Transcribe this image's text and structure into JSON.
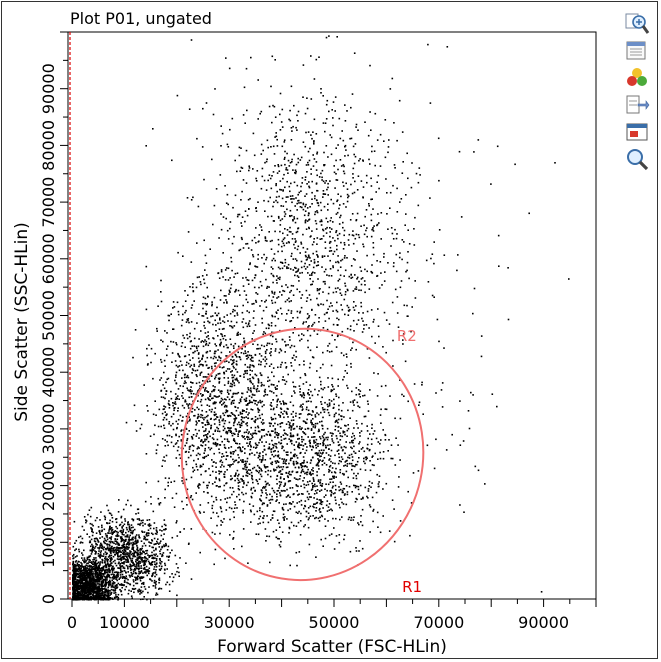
{
  "plot_title": "Plot P01, ungated",
  "toolbar": {
    "tools": [
      {
        "icon": "zoom-in-icon"
      },
      {
        "icon": "statistics-icon"
      },
      {
        "icon": "color-gating-icon"
      },
      {
        "icon": "export-icon"
      },
      {
        "icon": "window-icon"
      },
      {
        "icon": "magnifier-icon"
      }
    ]
  },
  "chart_data": {
    "type": "scatter",
    "title": "Plot P01, ungated",
    "xlabel": "Forward Scatter (FSC-HLin)",
    "ylabel": "Side Scatter (SSC-HLin)",
    "xlim": [
      0,
      100000
    ],
    "ylim": [
      0,
      100000
    ],
    "x_ticks": [
      0,
      10000,
      30000,
      50000,
      70000,
      90000
    ],
    "x_tick_labels": [
      "0",
      "10000",
      "30000",
      "50000",
      "70000",
      "90000"
    ],
    "y_ticks": [
      0,
      10000,
      20000,
      30000,
      40000,
      50000,
      60000,
      70000,
      80000,
      90000
    ],
    "y_tick_labels": [
      "0",
      "10000",
      "20000",
      "30000",
      "40000",
      "50000",
      "60000",
      "70000",
      "80000",
      "90000"
    ],
    "point_color": "#000000",
    "regions": [
      {
        "name": "R1",
        "shape": "line-gate",
        "color": "#e00000"
      },
      {
        "name": "R2",
        "shape": "ellipse",
        "color": "#f07070",
        "center": [
          44000,
          25500
        ],
        "x_radius": 23000,
        "y_radius": 22200,
        "rotation_deg": 12
      }
    ],
    "populations": [
      {
        "center": [
          3000,
          2500
        ],
        "spread": [
          3500,
          3000
        ],
        "count": 1500
      },
      {
        "center": [
          10000,
          8000
        ],
        "spread": [
          6000,
          5000
        ],
        "count": 1200
      },
      {
        "center": [
          28000,
          35000
        ],
        "spread": [
          9000,
          15000
        ],
        "count": 1400
      },
      {
        "center": [
          45000,
          25000
        ],
        "spread": [
          11000,
          10000
        ],
        "count": 1300
      },
      {
        "center": [
          45000,
          65000
        ],
        "spread": [
          13000,
          18000
        ],
        "count": 1100
      },
      {
        "center": [
          50000,
          55000
        ],
        "spread": [
          24000,
          28000
        ],
        "count": 350
      }
    ]
  }
}
